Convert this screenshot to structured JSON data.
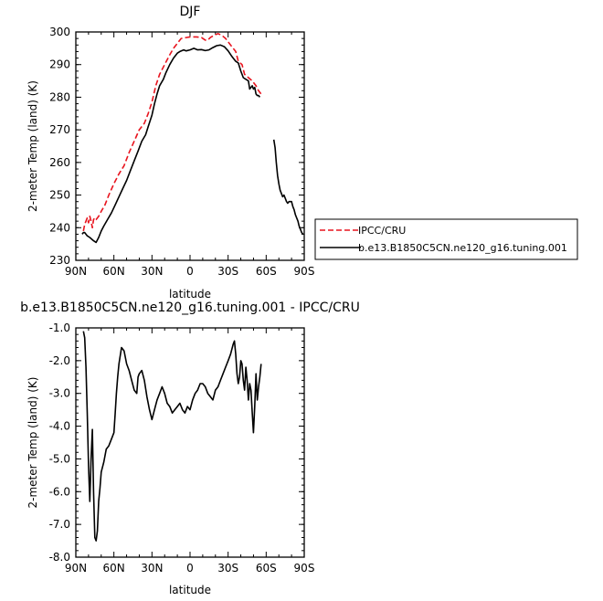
{
  "chart_data": [
    {
      "type": "line",
      "title": "DJF",
      "xlabel": "latitude",
      "ylabel": "2-meter Temp (land) (K)",
      "xlim": [
        90,
        -90
      ],
      "ylim": [
        230,
        300
      ],
      "xticks": [
        90,
        60,
        30,
        0,
        -30,
        -60,
        -90
      ],
      "xticklabels": [
        "90N",
        "60N",
        "30N",
        "0",
        "30S",
        "60S",
        "90S"
      ],
      "yticks": [
        230,
        240,
        250,
        260,
        270,
        280,
        290,
        300
      ],
      "yticklabels": [
        "230",
        "240",
        "250",
        "260",
        "270",
        "280",
        "290",
        "300"
      ],
      "legend_position": "right",
      "series": [
        {
          "name": "IPCC/CRU",
          "color": "#e8141e",
          "style": "dashed",
          "segments": [
            [
              [
                84,
                239
              ],
              [
                83,
                241
              ],
              [
                82,
                242
              ],
              [
                81,
                243
              ],
              [
                80,
                241.5
              ],
              [
                79,
                243.5
              ],
              [
                78,
                242
              ],
              [
                77,
                240
              ],
              [
                76,
                242.5
              ],
              [
                75,
                243
              ],
              [
                74,
                242.5
              ],
              [
                73,
                243
              ],
              [
                72,
                243.5
              ],
              [
                70,
                245
              ],
              [
                67,
                247
              ],
              [
                64,
                250
              ],
              [
                60,
                253.5
              ],
              [
                56,
                256.5
              ],
              [
                52,
                259
              ],
              [
                48,
                263
              ],
              [
                44,
                266.5
              ],
              [
                40,
                270
              ],
              [
                36,
                272
              ],
              [
                33,
                275
              ],
              [
                30,
                278.5
              ],
              [
                27,
                283.5
              ],
              [
                24,
                287
              ],
              [
                20,
                290
              ],
              [
                16,
                293
              ],
              [
                13,
                295
              ],
              [
                10,
                296.5
              ],
              [
                7,
                298
              ],
              [
                3,
                298.3
              ],
              [
                0,
                298.5
              ],
              [
                -5,
                298.5
              ],
              [
                -9,
                298.3
              ],
              [
                -12,
                297.5
              ],
              [
                -14,
                297.5
              ],
              [
                -16,
                298.3
              ],
              [
                -19,
                299
              ],
              [
                -22,
                299.5
              ],
              [
                -25,
                299
              ],
              [
                -28,
                298
              ],
              [
                -32,
                296
              ],
              [
                -36,
                294
              ],
              [
                -38,
                291
              ],
              [
                -41,
                290
              ],
              [
                -43,
                287
              ],
              [
                -46,
                286
              ],
              [
                -49,
                285
              ],
              [
                -52,
                283.5
              ],
              [
                -54,
                282
              ],
              [
                -56,
                281
              ]
            ]
          ]
        },
        {
          "name": "b.e13.B1850C5CN.ne120_g16.tuning.001",
          "color": "#000000",
          "style": "solid",
          "segments": [
            [
              [
                85,
                238
              ],
              [
                84,
                238.5
              ],
              [
                83,
                238.5
              ],
              [
                81,
                237.5
              ],
              [
                79,
                237
              ],
              [
                76,
                236
              ],
              [
                74,
                235.5
              ],
              [
                72,
                237
              ],
              [
                70,
                239
              ],
              [
                68,
                240.5
              ],
              [
                65,
                242.5
              ],
              [
                62,
                244.5
              ],
              [
                59,
                247
              ],
              [
                56,
                249.5
              ],
              [
                53,
                252
              ],
              [
                50,
                254.5
              ],
              [
                47,
                257.5
              ],
              [
                44,
                260.5
              ],
              [
                41,
                263.5
              ],
              [
                38,
                266.5
              ],
              [
                35,
                268.5
              ],
              [
                33,
                271
              ],
              [
                30,
                274.5
              ],
              [
                28,
                278
              ],
              [
                26,
                281
              ],
              [
                24,
                283.5
              ],
              [
                21,
                285.5
              ],
              [
                19,
                287.5
              ],
              [
                16,
                290
              ],
              [
                13,
                292
              ],
              [
                10,
                293.5
              ],
              [
                8,
                294
              ],
              [
                5,
                294.5
              ],
              [
                3,
                294.2
              ],
              [
                0,
                294.5
              ],
              [
                -3,
                295
              ],
              [
                -6,
                294.5
              ],
              [
                -9,
                294.6
              ],
              [
                -12,
                294.3
              ],
              [
                -15,
                294.5
              ],
              [
                -18,
                295.2
              ],
              [
                -21,
                295.8
              ],
              [
                -24,
                296
              ],
              [
                -27,
                295.5
              ],
              [
                -30,
                294.2
              ],
              [
                -33,
                292.5
              ],
              [
                -36,
                291
              ],
              [
                -38,
                290.5
              ],
              [
                -40,
                288
              ],
              [
                -42,
                286
              ],
              [
                -44,
                285.5
              ],
              [
                -46,
                285
              ],
              [
                -47,
                282.5
              ],
              [
                -49,
                283.5
              ],
              [
                -50,
                282.5
              ],
              [
                -51,
                283
              ],
              [
                -52,
                281
              ],
              [
                -53,
                280.5
              ],
              [
                -54,
                280.5
              ],
              [
                -55,
                280
              ]
            ],
            [
              [
                -66,
                267
              ],
              [
                -67,
                264.5
              ],
              [
                -68,
                260
              ],
              [
                -69,
                256
              ],
              [
                -70,
                253.5
              ],
              [
                -71,
                251.5
              ],
              [
                -72,
                250.5
              ],
              [
                -73,
                249.5
              ],
              [
                -74,
                250
              ],
              [
                -75,
                249
              ],
              [
                -76,
                248
              ],
              [
                -77,
                247.5
              ],
              [
                -78,
                248
              ],
              [
                -79,
                248
              ],
              [
                -80,
                248
              ],
              [
                -81,
                246.5
              ],
              [
                -82,
                245.5
              ],
              [
                -83,
                244
              ],
              [
                -84,
                243
              ],
              [
                -85,
                242
              ],
              [
                -86,
                240.5
              ],
              [
                -87,
                239.5
              ],
              [
                -88,
                238.5
              ],
              [
                -89,
                238
              ]
            ]
          ]
        }
      ]
    },
    {
      "type": "line",
      "title": "b.e13.B1850C5CN.ne120_g16.tuning.001 - IPCC/CRU",
      "xlabel": "latitude",
      "ylabel": "2-meter Temp (land) (K)",
      "xlim": [
        90,
        -90
      ],
      "ylim": [
        -8,
        -1
      ],
      "xticks": [
        90,
        60,
        30,
        0,
        -30,
        -60,
        -90
      ],
      "xticklabels": [
        "90N",
        "60N",
        "30N",
        "0",
        "30S",
        "60S",
        "90S"
      ],
      "yticks": [
        -8,
        -7,
        -6,
        -5,
        -4,
        -3,
        -2,
        -1
      ],
      "yticklabels": [
        "-8.0",
        "-7.0",
        "-6.0",
        "-5.0",
        "-4.0",
        "-3.0",
        "-2.0",
        "-1.0"
      ],
      "series": [
        {
          "color": "#000000",
          "style": "solid",
          "segments": [
            [
              [
                84,
                -1.1
              ],
              [
                83,
                -1.3
              ],
              [
                82,
                -2.2
              ],
              [
                81,
                -3.6
              ],
              [
                80,
                -5.2
              ],
              [
                79,
                -6.3
              ],
              [
                78,
                -5.0
              ],
              [
                77,
                -4.1
              ],
              [
                76,
                -6.0
              ],
              [
                75,
                -7.4
              ],
              [
                74,
                -7.5
              ],
              [
                73,
                -7.2
              ],
              [
                72,
                -6.3
              ],
              [
                71,
                -5.9
              ],
              [
                70,
                -5.4
              ],
              [
                68,
                -5.1
              ],
              [
                66,
                -4.7
              ],
              [
                64,
                -4.6
              ],
              [
                62,
                -4.4
              ],
              [
                60,
                -4.2
              ],
              [
                59,
                -3.6
              ],
              [
                58,
                -3.0
              ],
              [
                57,
                -2.5
              ],
              [
                56,
                -2.1
              ],
              [
                54,
                -1.6
              ],
              [
                52,
                -1.7
              ],
              [
                50,
                -2.1
              ],
              [
                48,
                -2.3
              ],
              [
                46,
                -2.6
              ],
              [
                44,
                -2.9
              ],
              [
                42,
                -3.0
              ],
              [
                41,
                -2.5
              ],
              [
                40,
                -2.4
              ],
              [
                38,
                -2.3
              ],
              [
                36,
                -2.6
              ],
              [
                34,
                -3.1
              ],
              [
                32,
                -3.5
              ],
              [
                30,
                -3.8
              ],
              [
                28,
                -3.5
              ],
              [
                26,
                -3.2
              ],
              [
                24,
                -3.0
              ],
              [
                22,
                -2.8
              ],
              [
                20,
                -3.0
              ],
              [
                18,
                -3.3
              ],
              [
                16,
                -3.4
              ],
              [
                14,
                -3.6
              ],
              [
                12,
                -3.5
              ],
              [
                10,
                -3.4
              ],
              [
                8,
                -3.3
              ],
              [
                6,
                -3.5
              ],
              [
                4,
                -3.6
              ],
              [
                2,
                -3.4
              ],
              [
                0,
                -3.5
              ],
              [
                -2,
                -3.2
              ],
              [
                -4,
                -3.0
              ],
              [
                -6,
                -2.9
              ],
              [
                -8,
                -2.7
              ],
              [
                -10,
                -2.7
              ],
              [
                -12,
                -2.8
              ],
              [
                -14,
                -3.0
              ],
              [
                -16,
                -3.1
              ],
              [
                -18,
                -3.2
              ],
              [
                -20,
                -2.9
              ],
              [
                -22,
                -2.8
              ],
              [
                -24,
                -2.6
              ],
              [
                -26,
                -2.4
              ],
              [
                -28,
                -2.2
              ],
              [
                -30,
                -2.0
              ],
              [
                -32,
                -1.8
              ],
              [
                -34,
                -1.5
              ],
              [
                -35,
                -1.4
              ],
              [
                -36,
                -1.8
              ],
              [
                -37,
                -2.4
              ],
              [
                -38,
                -2.7
              ],
              [
                -39,
                -2.5
              ],
              [
                -40,
                -2.0
              ],
              [
                -41,
                -2.1
              ],
              [
                -42,
                -2.6
              ],
              [
                -43,
                -2.9
              ],
              [
                -44,
                -2.2
              ],
              [
                -45,
                -2.6
              ],
              [
                -46,
                -3.2
              ],
              [
                -47,
                -2.7
              ],
              [
                -48,
                -2.9
              ],
              [
                -49,
                -3.6
              ],
              [
                -50,
                -4.2
              ],
              [
                -51,
                -3.4
              ],
              [
                -52,
                -2.4
              ],
              [
                -53,
                -3.2
              ],
              [
                -54,
                -2.8
              ],
              [
                -55,
                -2.5
              ],
              [
                -56,
                -2.1
              ]
            ]
          ]
        }
      ]
    }
  ]
}
